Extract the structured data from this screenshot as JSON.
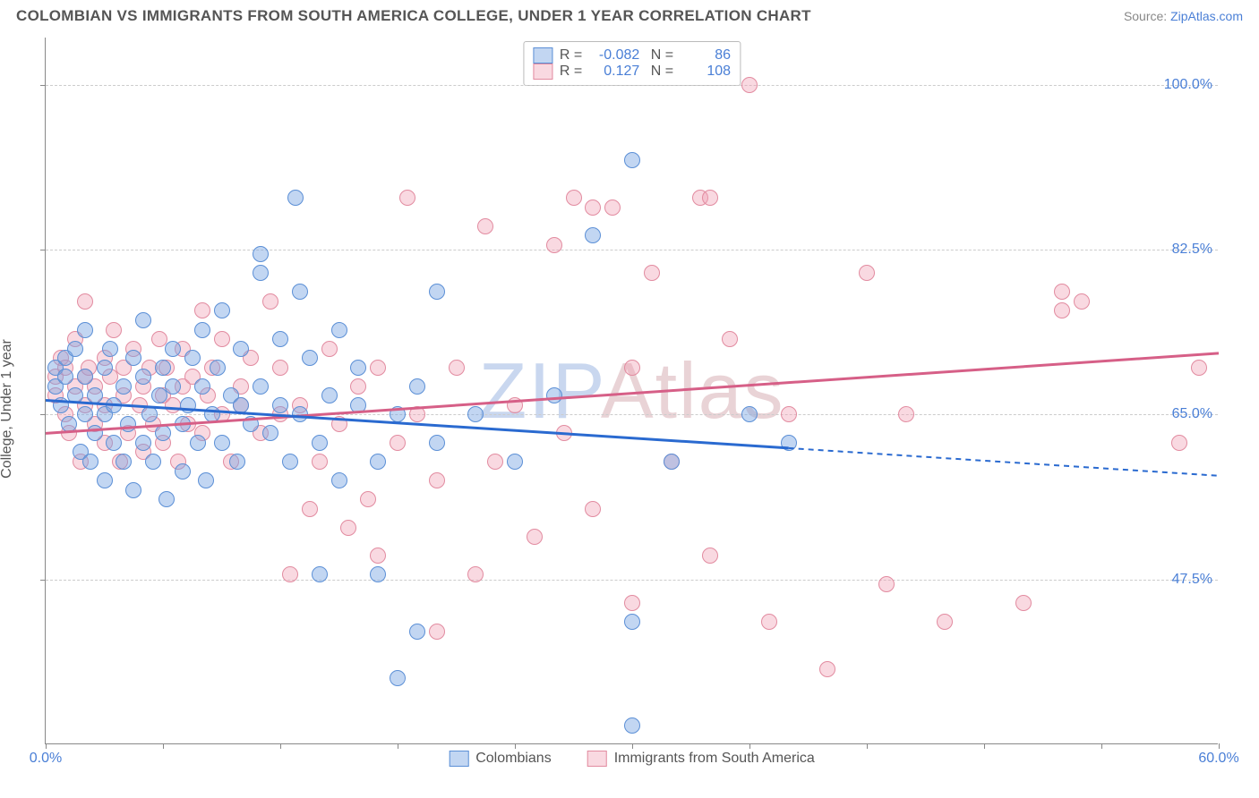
{
  "title": "COLOMBIAN VS IMMIGRANTS FROM SOUTH AMERICA COLLEGE, UNDER 1 YEAR CORRELATION CHART",
  "source_label": "Source:",
  "source_name": "ZipAtlas.com",
  "ylabel": "College, Under 1 year",
  "watermark": {
    "text_a": "ZIP",
    "text_b": "Atlas",
    "color_a": "#c9d7ef",
    "color_b": "#e9d3d6"
  },
  "colors": {
    "series_a_fill": "rgba(120,164,226,0.45)",
    "series_a_stroke": "#5b8fd6",
    "series_b_fill": "rgba(240,160,180,0.40)",
    "series_b_stroke": "#e28ba0",
    "trend_a": "#2a6ad0",
    "trend_b": "#d65f87",
    "axis_text": "#4a7fd6",
    "grid": "#cccccc"
  },
  "chart": {
    "type": "scatter",
    "xlim": [
      0,
      60
    ],
    "ylim": [
      30,
      105
    ],
    "marker_radius": 9,
    "marker_stroke_width": 1.5,
    "y_ticks": [
      47.5,
      65.0,
      82.5,
      100.0
    ],
    "y_tick_labels": [
      "47.5%",
      "65.0%",
      "82.5%",
      "100.0%"
    ],
    "x_ticks": [
      0,
      60
    ],
    "x_tick_labels": [
      "0.0%",
      "60.0%"
    ],
    "x_marks": [
      0,
      6,
      12,
      18,
      24,
      30,
      36,
      42,
      48,
      54,
      60
    ]
  },
  "legend": {
    "series_a": "Colombians",
    "series_b": "Immigrants from South America"
  },
  "correlation": {
    "series_a": {
      "R": "-0.082",
      "N": "86"
    },
    "series_b": {
      "R": "0.127",
      "N": "108"
    }
  },
  "trend": {
    "series_a": {
      "x1": 0,
      "y1": 66.5,
      "x2": 60,
      "y2": 58.5,
      "solid_until_x": 38
    },
    "series_b": {
      "x1": 0,
      "y1": 63.0,
      "x2": 60,
      "y2": 71.5,
      "solid_until_x": 60
    }
  },
  "series_a_points": [
    [
      0.5,
      70
    ],
    [
      0.5,
      68
    ],
    [
      0.8,
      66
    ],
    [
      1,
      71
    ],
    [
      1,
      69
    ],
    [
      1.2,
      64
    ],
    [
      1.5,
      67
    ],
    [
      1.5,
      72
    ],
    [
      1.8,
      61
    ],
    [
      2,
      69
    ],
    [
      2,
      65
    ],
    [
      2,
      74
    ],
    [
      2.3,
      60
    ],
    [
      2.5,
      67
    ],
    [
      2.5,
      63
    ],
    [
      3,
      70
    ],
    [
      3,
      65
    ],
    [
      3,
      58
    ],
    [
      3.3,
      72
    ],
    [
      3.5,
      66
    ],
    [
      3.5,
      62
    ],
    [
      4,
      68
    ],
    [
      4,
      60
    ],
    [
      4.2,
      64
    ],
    [
      4.5,
      71
    ],
    [
      4.5,
      57
    ],
    [
      5,
      69
    ],
    [
      5,
      62
    ],
    [
      5,
      75
    ],
    [
      5.3,
      65
    ],
    [
      5.5,
      60
    ],
    [
      5.8,
      67
    ],
    [
      6,
      63
    ],
    [
      6,
      70
    ],
    [
      6.2,
      56
    ],
    [
      6.5,
      68
    ],
    [
      6.5,
      72
    ],
    [
      7,
      64
    ],
    [
      7,
      59
    ],
    [
      7.3,
      66
    ],
    [
      7.5,
      71
    ],
    [
      7.8,
      62
    ],
    [
      8,
      68
    ],
    [
      8,
      74
    ],
    [
      8.2,
      58
    ],
    [
      8.5,
      65
    ],
    [
      8.8,
      70
    ],
    [
      9,
      62
    ],
    [
      9,
      76
    ],
    [
      9.5,
      67
    ],
    [
      9.8,
      60
    ],
    [
      10,
      66
    ],
    [
      10,
      72
    ],
    [
      10.5,
      64
    ],
    [
      11,
      80
    ],
    [
      11,
      82
    ],
    [
      11,
      68
    ],
    [
      11.5,
      63
    ],
    [
      12,
      73
    ],
    [
      12,
      66
    ],
    [
      12.5,
      60
    ],
    [
      12.8,
      88
    ],
    [
      13,
      78
    ],
    [
      13,
      65
    ],
    [
      13.5,
      71
    ],
    [
      14,
      62
    ],
    [
      14,
      48
    ],
    [
      14.5,
      67
    ],
    [
      15,
      74
    ],
    [
      15,
      58
    ],
    [
      16,
      66
    ],
    [
      16,
      70
    ],
    [
      17,
      60
    ],
    [
      17,
      48
    ],
    [
      18,
      65
    ],
    [
      18,
      37
    ],
    [
      19,
      42
    ],
    [
      19,
      68
    ],
    [
      20,
      78
    ],
    [
      20,
      62
    ],
    [
      22,
      65
    ],
    [
      24,
      60
    ],
    [
      26,
      67
    ],
    [
      28,
      84
    ],
    [
      30,
      43
    ],
    [
      30,
      92
    ],
    [
      30,
      32
    ],
    [
      32,
      60
    ],
    [
      36,
      65
    ],
    [
      38,
      62
    ]
  ],
  "series_b_points": [
    [
      0.5,
      69
    ],
    [
      0.5,
      67
    ],
    [
      0.8,
      71
    ],
    [
      1,
      65
    ],
    [
      1,
      70
    ],
    [
      1.2,
      63
    ],
    [
      1.5,
      68
    ],
    [
      1.5,
      73
    ],
    [
      1.8,
      60
    ],
    [
      2,
      69
    ],
    [
      2,
      66
    ],
    [
      2,
      77
    ],
    [
      2.2,
      70
    ],
    [
      2.5,
      64
    ],
    [
      2.5,
      68
    ],
    [
      3,
      71
    ],
    [
      3,
      62
    ],
    [
      3,
      66
    ],
    [
      3.3,
      69
    ],
    [
      3.5,
      74
    ],
    [
      3.8,
      60
    ],
    [
      4,
      67
    ],
    [
      4,
      70
    ],
    [
      4.2,
      63
    ],
    [
      4.5,
      72
    ],
    [
      4.8,
      66
    ],
    [
      5,
      68
    ],
    [
      5,
      61
    ],
    [
      5.3,
      70
    ],
    [
      5.5,
      64
    ],
    [
      5.8,
      73
    ],
    [
      6,
      67
    ],
    [
      6,
      62
    ],
    [
      6.2,
      70
    ],
    [
      6.5,
      66
    ],
    [
      6.8,
      60
    ],
    [
      7,
      68
    ],
    [
      7,
      72
    ],
    [
      7.3,
      64
    ],
    [
      7.5,
      69
    ],
    [
      8,
      63
    ],
    [
      8,
      76
    ],
    [
      8.3,
      67
    ],
    [
      8.5,
      70
    ],
    [
      9,
      65
    ],
    [
      9,
      73
    ],
    [
      9.5,
      60
    ],
    [
      10,
      68
    ],
    [
      10,
      66
    ],
    [
      10.5,
      71
    ],
    [
      11,
      63
    ],
    [
      11.5,
      77
    ],
    [
      12,
      65
    ],
    [
      12,
      70
    ],
    [
      12.5,
      48
    ],
    [
      13,
      66
    ],
    [
      13.5,
      55
    ],
    [
      14,
      60
    ],
    [
      14.5,
      72
    ],
    [
      15,
      64
    ],
    [
      15.5,
      53
    ],
    [
      16,
      68
    ],
    [
      16.5,
      56
    ],
    [
      17,
      70
    ],
    [
      17,
      50
    ],
    [
      18,
      62
    ],
    [
      18.5,
      88
    ],
    [
      19,
      65
    ],
    [
      20,
      42
    ],
    [
      20,
      58
    ],
    [
      21,
      70
    ],
    [
      22,
      48
    ],
    [
      22.5,
      85
    ],
    [
      23,
      60
    ],
    [
      24,
      66
    ],
    [
      25,
      52
    ],
    [
      26,
      83
    ],
    [
      26.5,
      63
    ],
    [
      27,
      88
    ],
    [
      28,
      55
    ],
    [
      28,
      87
    ],
    [
      29,
      87
    ],
    [
      30,
      70
    ],
    [
      30,
      45
    ],
    [
      31,
      80
    ],
    [
      32,
      60
    ],
    [
      33.5,
      88
    ],
    [
      34,
      50
    ],
    [
      34,
      88
    ],
    [
      35,
      73
    ],
    [
      36,
      100
    ],
    [
      37,
      43
    ],
    [
      38,
      65
    ],
    [
      40,
      38
    ],
    [
      42,
      80
    ],
    [
      43,
      47
    ],
    [
      44,
      65
    ],
    [
      46,
      43
    ],
    [
      50,
      45
    ],
    [
      52,
      78
    ],
    [
      52,
      76
    ],
    [
      53,
      77
    ],
    [
      58,
      62
    ],
    [
      59,
      70
    ]
  ]
}
